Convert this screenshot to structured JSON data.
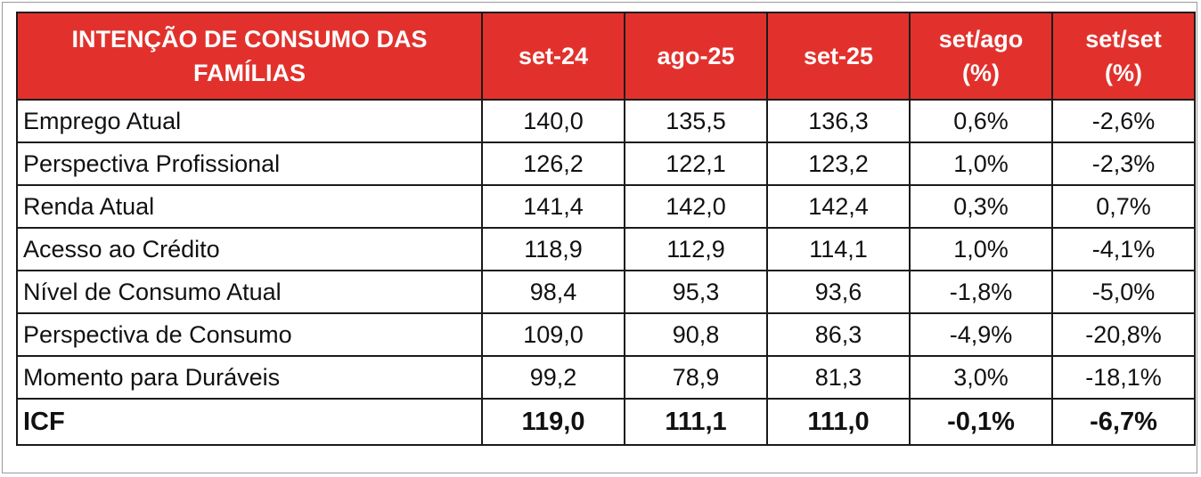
{
  "table": {
    "header": [
      "INTENÇÃO DE CONSUMO DAS FAMÍLIAS",
      "set-24",
      "ago-25",
      "set-25",
      "set/ago (%)",
      "set/set (%)"
    ],
    "rows": [
      [
        "Emprego Atual",
        "140,0",
        "135,5",
        "136,3",
        "0,6%",
        "-2,6%"
      ],
      [
        "Perspectiva Profissional",
        "126,2",
        "122,1",
        "123,2",
        "1,0%",
        "-2,3%"
      ],
      [
        "Renda Atual",
        "141,4",
        "142,0",
        "142,4",
        "0,3%",
        "0,7%"
      ],
      [
        "Acesso ao Crédito",
        "118,9",
        "112,9",
        "114,1",
        "1,0%",
        "-4,1%"
      ],
      [
        "Nível de Consumo Atual",
        "98,4",
        "95,3",
        "93,6",
        "-1,8%",
        "-5,0%"
      ],
      [
        "Perspectiva de Consumo",
        "109,0",
        "90,8",
        "86,3",
        "-4,9%",
        "-20,8%"
      ],
      [
        "Momento para Duráveis",
        "99,2",
        "78,9",
        "81,3",
        "3,0%",
        "-18,1%"
      ],
      [
        "ICF",
        "119,0",
        "111,1",
        "111,0",
        "-0,1%",
        "-6,7%"
      ]
    ]
  }
}
